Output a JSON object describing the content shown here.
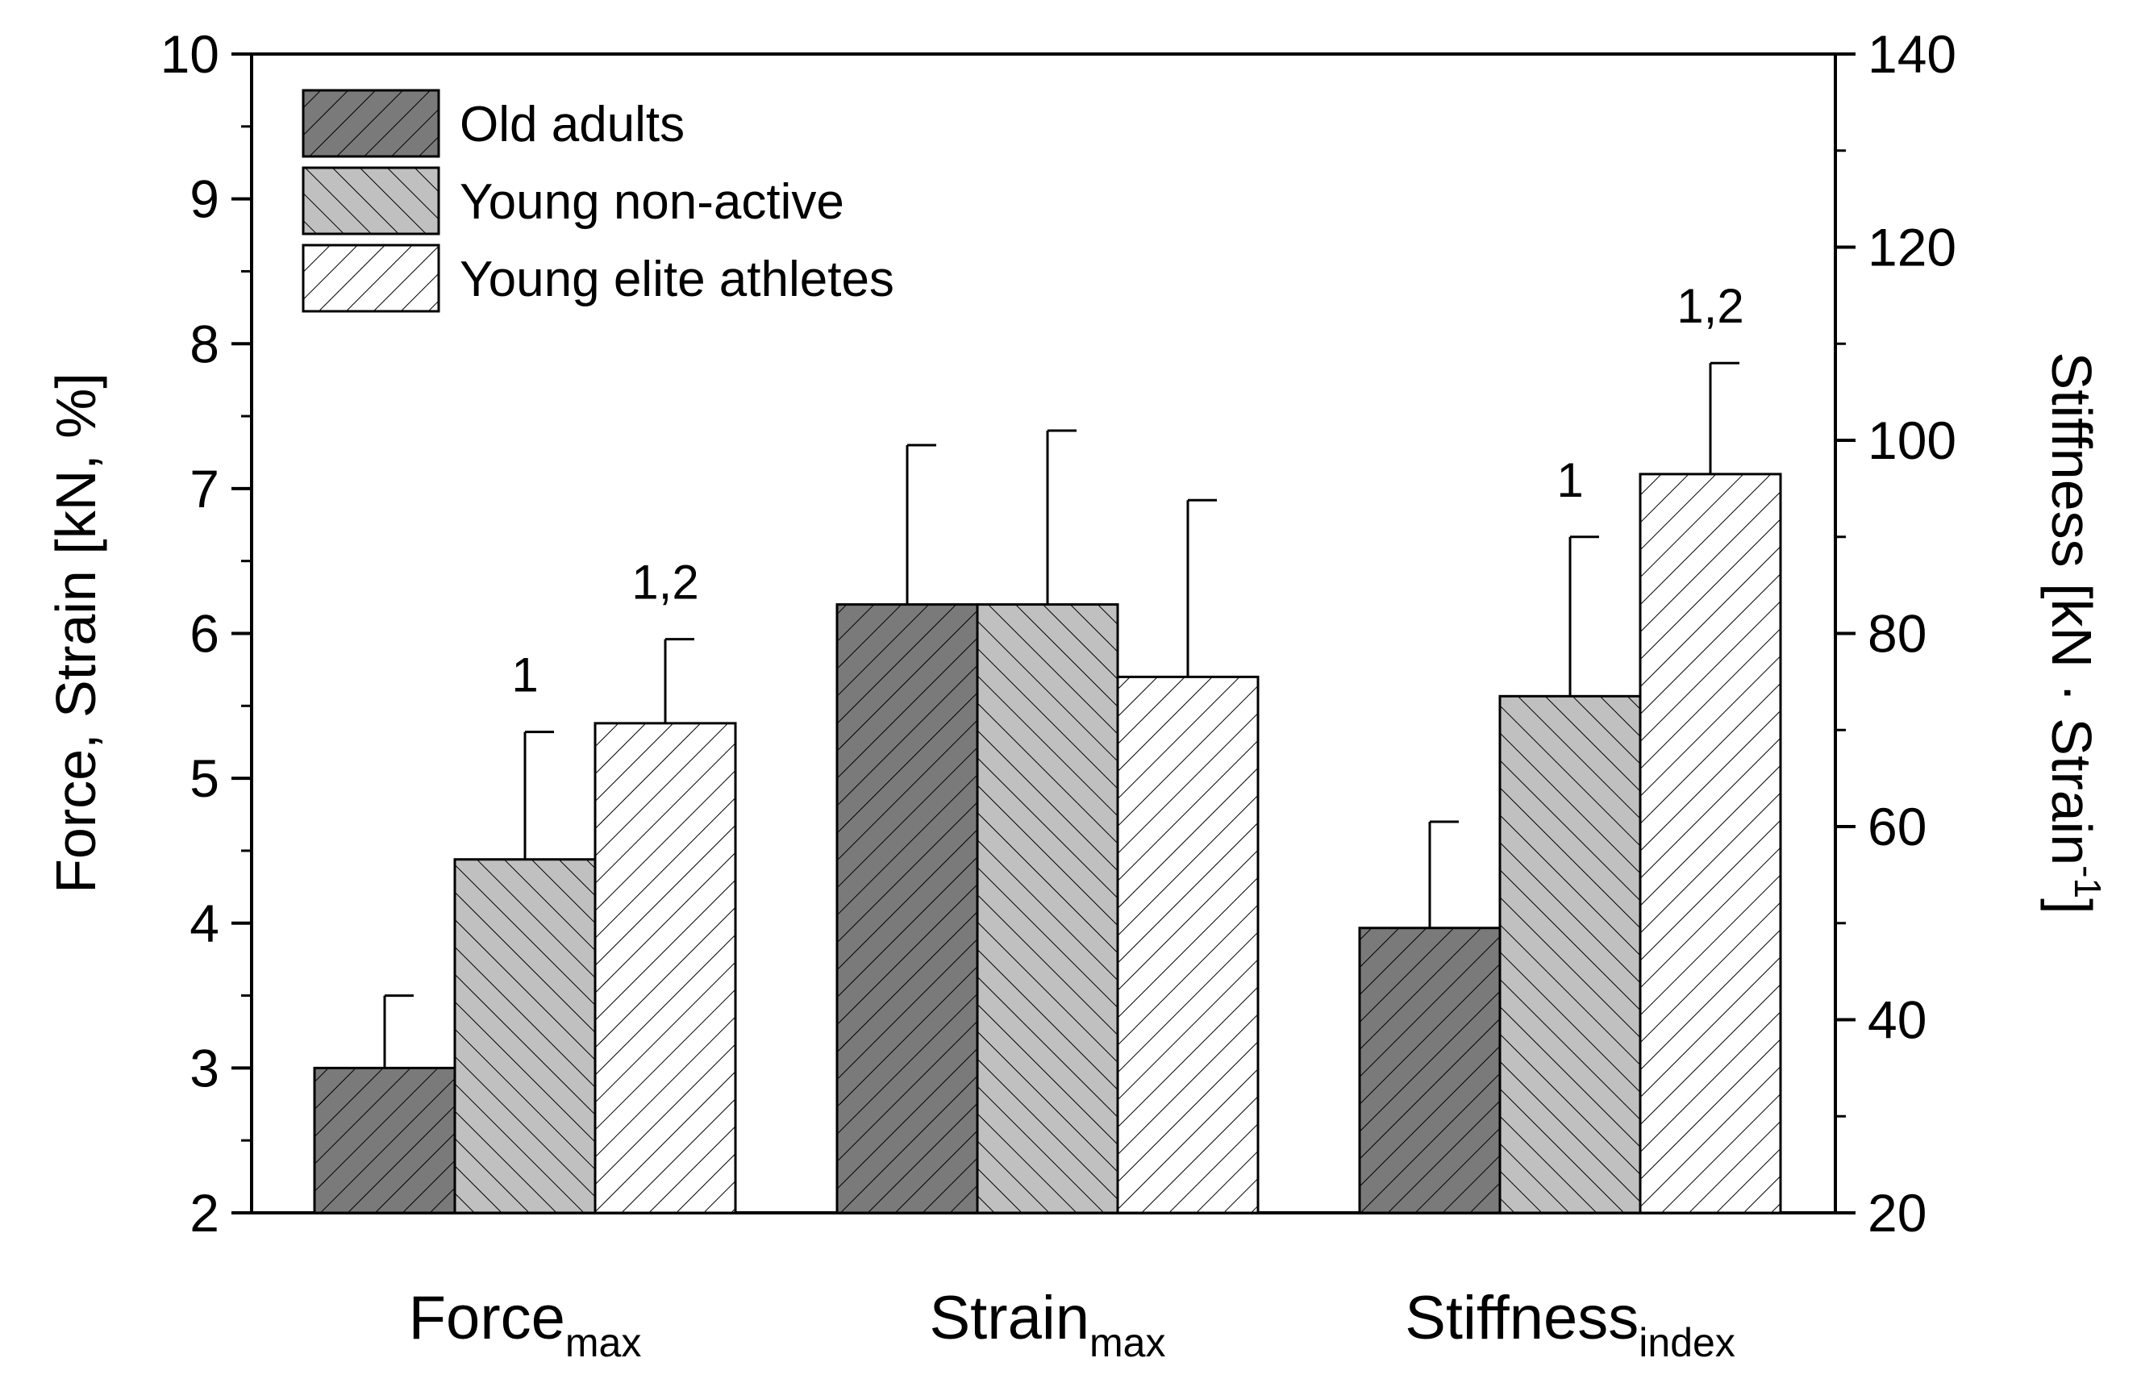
{
  "chart_data": {
    "type": "bar",
    "categories": [
      {
        "main": "Force",
        "sub": "max",
        "axis": "left"
      },
      {
        "main": "Strain",
        "sub": "max",
        "axis": "left"
      },
      {
        "main": "Stiffness",
        "sub": "index",
        "axis": "right"
      }
    ],
    "series": [
      {
        "name": "Old adults",
        "color": "#7a7a7a",
        "pattern": "hatch-fwd",
        "values": [
          3.0,
          6.2,
          49.5
        ],
        "errors": [
          0.5,
          1.1,
          11.0
        ],
        "labels": [
          "",
          "",
          ""
        ]
      },
      {
        "name": "Young non-active",
        "color": "#c0c0c0",
        "pattern": "hatch-back",
        "values": [
          4.44,
          6.2,
          73.5
        ],
        "errors": [
          0.88,
          1.2,
          16.5
        ],
        "labels": [
          "1",
          "",
          "1"
        ]
      },
      {
        "name": "Young elite athletes",
        "color": "#ffffff",
        "pattern": "hatch-fwd",
        "values": [
          5.38,
          5.7,
          96.5
        ],
        "errors": [
          0.58,
          1.22,
          11.5
        ],
        "labels": [
          "1,2",
          "",
          "1,2"
        ]
      }
    ],
    "y_left": {
      "label": "Force, Strain [kN, %]",
      "lim": [
        2,
        10
      ],
      "ticks": [
        "2",
        "3",
        "4",
        "5",
        "6",
        "7",
        "8",
        "9",
        "10"
      ]
    },
    "y_right": {
      "label_main": "Stiffness [kN · Strain",
      "label_sup": "-1",
      "label_end": "]",
      "lim": [
        20,
        140
      ],
      "ticks": [
        "20",
        "40",
        "60",
        "80",
        "100",
        "120",
        "140"
      ]
    },
    "legend": "top-left",
    "grid": false
  }
}
